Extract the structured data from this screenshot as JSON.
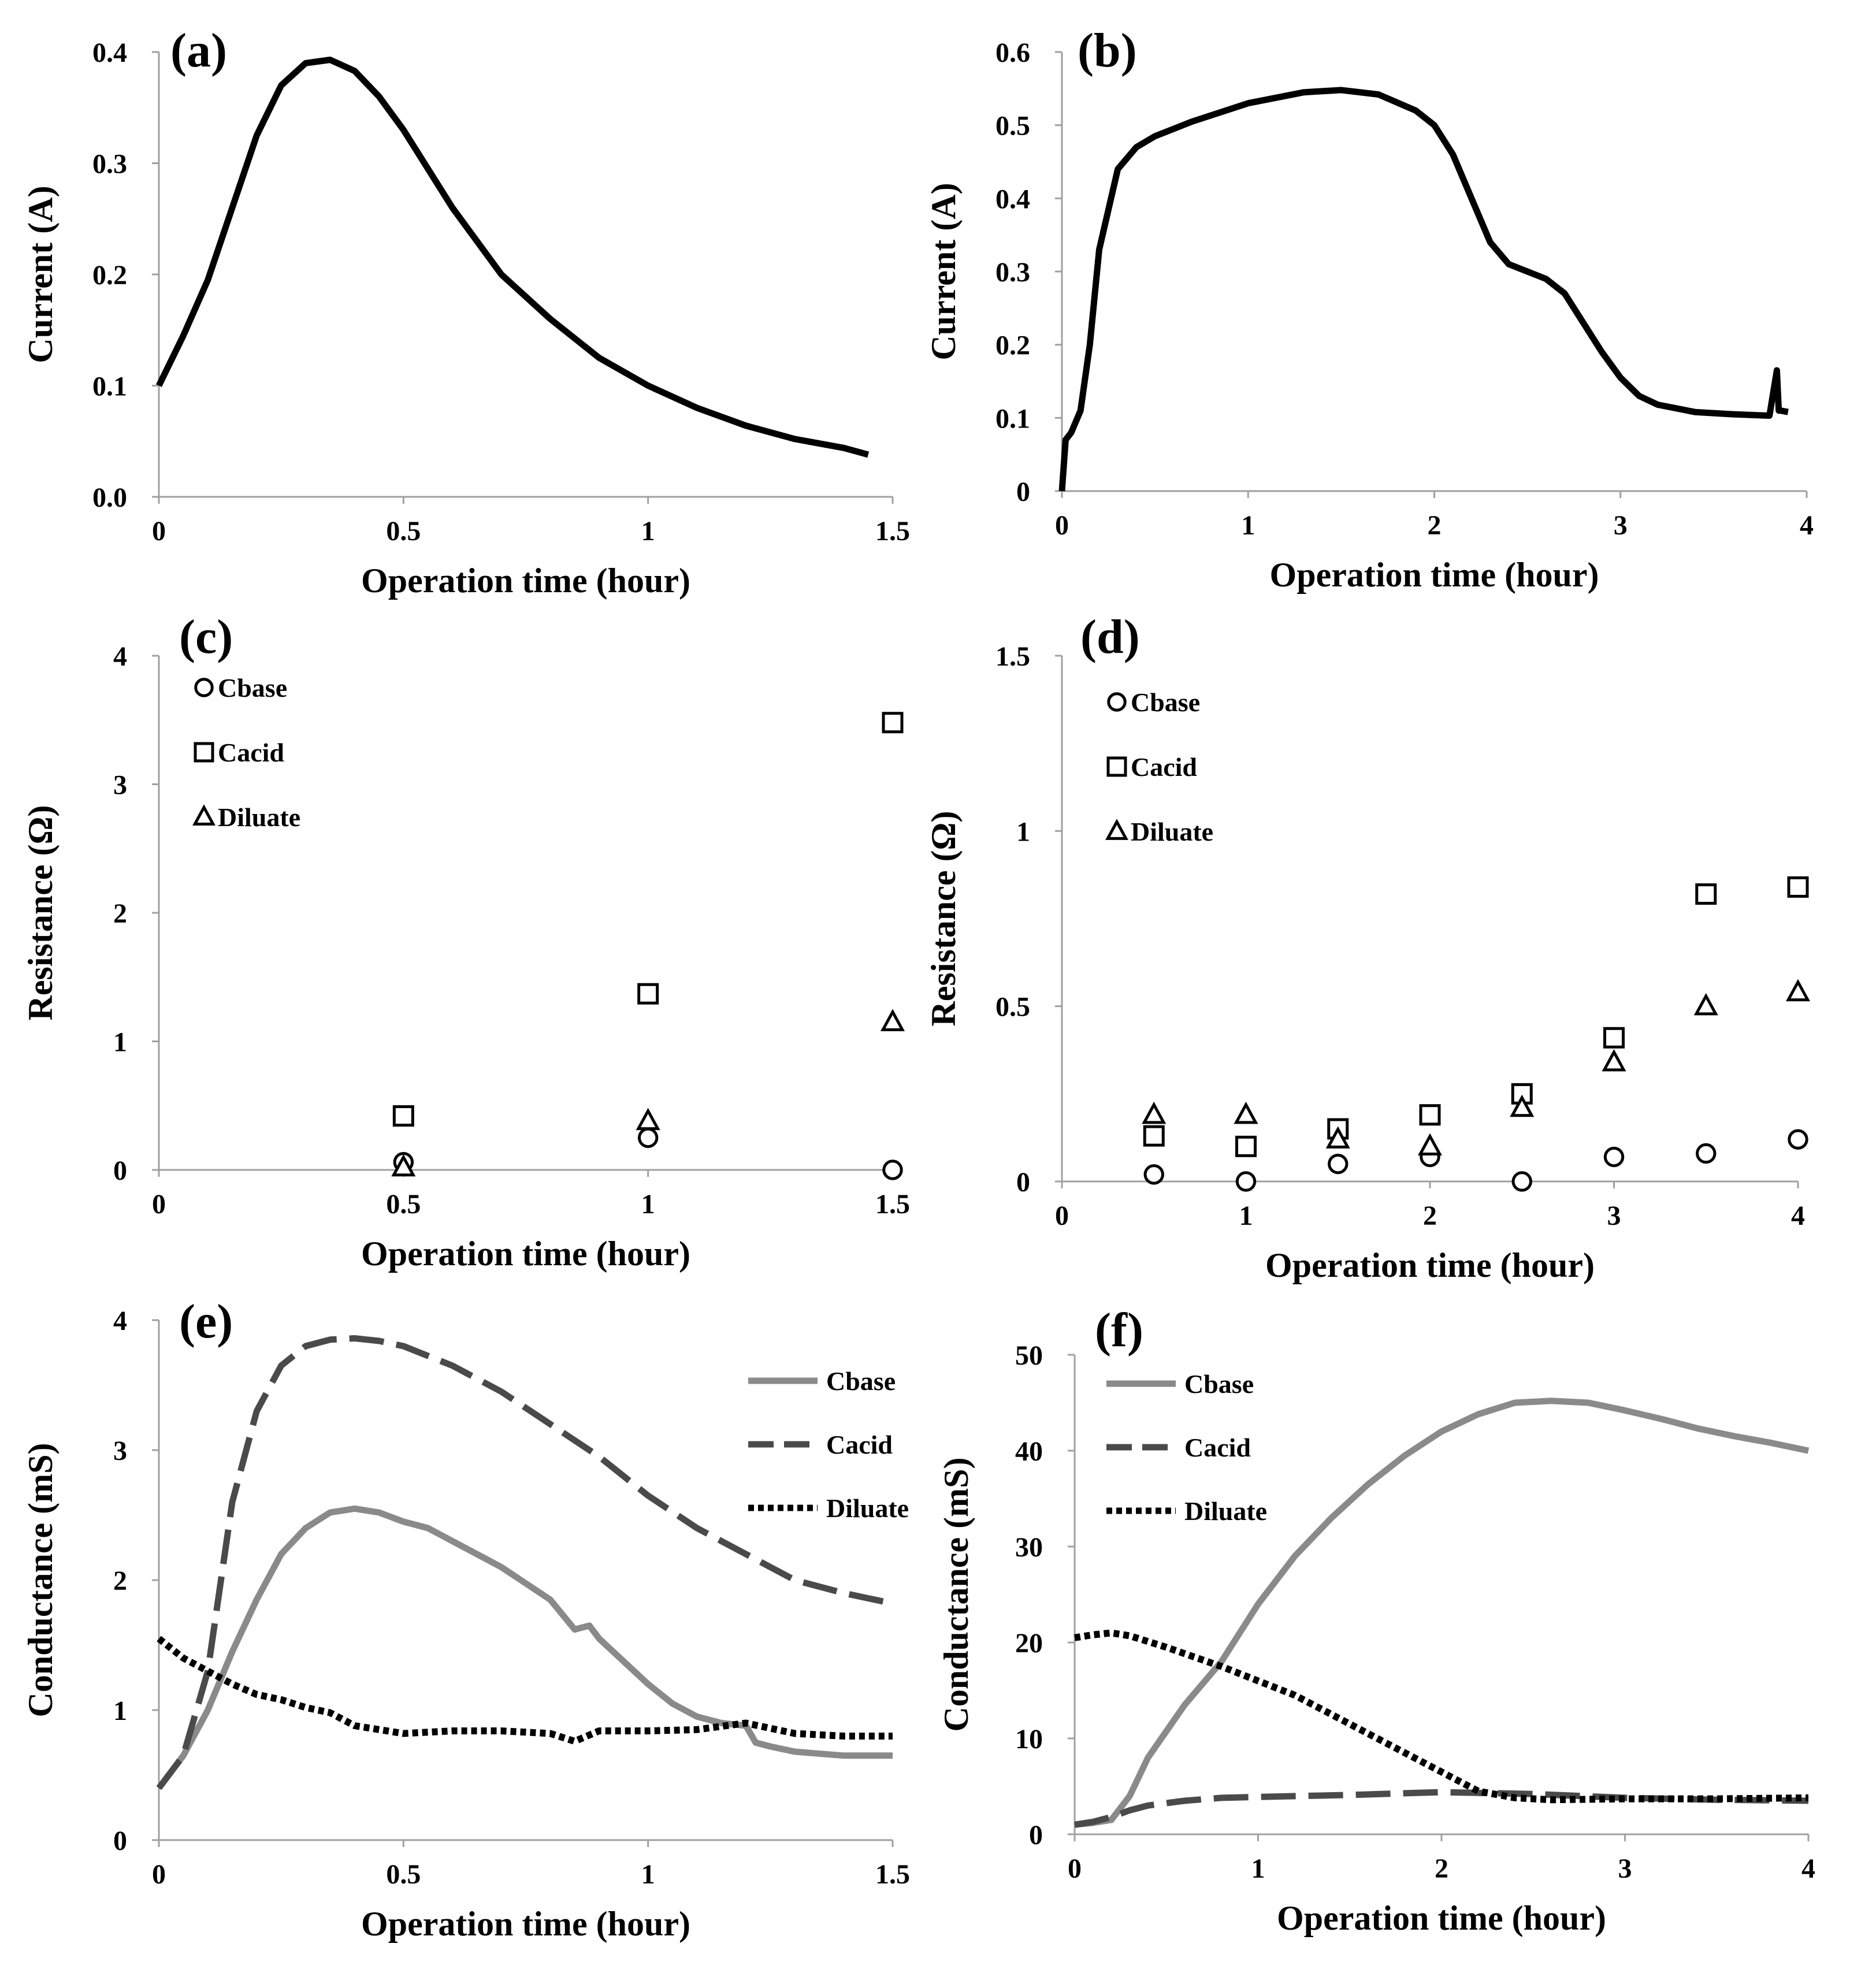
{
  "chart_data": [
    {
      "panel": "(a)",
      "type": "line",
      "xlabel": "Operation time (hour)",
      "ylabel": "Current (A)",
      "xlim": [
        0,
        1.5
      ],
      "ylim": [
        0,
        0.4
      ],
      "xticks": [
        "0",
        "0.5",
        "1",
        "1.5"
      ],
      "yticks": [
        "0.0",
        "0.1",
        "0.2",
        "0.3",
        "0.4"
      ],
      "series": [
        {
          "style": "solid",
          "color": "#000000",
          "x": [
            0,
            0.05,
            0.1,
            0.15,
            0.2,
            0.25,
            0.3,
            0.35,
            0.4,
            0.45,
            0.5,
            0.6,
            0.7,
            0.8,
            0.9,
            1.0,
            1.1,
            1.2,
            1.3,
            1.4,
            1.45
          ],
          "y": [
            0.1,
            0.145,
            0.195,
            0.26,
            0.325,
            0.37,
            0.39,
            0.393,
            0.383,
            0.36,
            0.33,
            0.26,
            0.2,
            0.16,
            0.125,
            0.1,
            0.08,
            0.064,
            0.052,
            0.044,
            0.038
          ]
        }
      ]
    },
    {
      "panel": "(b)",
      "type": "line",
      "xlabel": "Operation time (hour)",
      "ylabel": "Current (A)",
      "xlim": [
        0,
        4
      ],
      "ylim": [
        0,
        0.6
      ],
      "xticks": [
        "0",
        "1",
        "2",
        "3",
        "4"
      ],
      "yticks": [
        "0",
        "0.1",
        "0.2",
        "0.3",
        "0.4",
        "0.5",
        "0.6"
      ],
      "series": [
        {
          "style": "solid",
          "color": "#000000",
          "x": [
            0,
            0.02,
            0.05,
            0.1,
            0.15,
            0.2,
            0.3,
            0.4,
            0.5,
            0.7,
            1.0,
            1.3,
            1.5,
            1.7,
            1.9,
            2.0,
            2.1,
            2.2,
            2.3,
            2.4,
            2.5,
            2.6,
            2.7,
            2.8,
            2.9,
            3.0,
            3.1,
            3.2,
            3.4,
            3.6,
            3.8,
            3.84,
            3.85,
            3.86,
            3.9
          ],
          "y": [
            0.0,
            0.07,
            0.08,
            0.11,
            0.2,
            0.33,
            0.44,
            0.47,
            0.485,
            0.505,
            0.53,
            0.545,
            0.548,
            0.542,
            0.52,
            0.5,
            0.46,
            0.4,
            0.34,
            0.31,
            0.3,
            0.29,
            0.27,
            0.23,
            0.19,
            0.155,
            0.13,
            0.118,
            0.108,
            0.105,
            0.103,
            0.165,
            0.11,
            0.11,
            0.108
          ]
        }
      ]
    },
    {
      "panel": "(c)",
      "type": "scatter",
      "xlabel": "Operation time (hour)",
      "ylabel": "Resistance (Ω)",
      "xlim": [
        0,
        1.5
      ],
      "ylim": [
        0,
        4
      ],
      "xticks": [
        "0",
        "0.5",
        "1",
        "1.5"
      ],
      "yticks": [
        "0",
        "1",
        "2",
        "3",
        "4"
      ],
      "legend": "top-left",
      "series": [
        {
          "name": "Cbase",
          "marker": "circle",
          "x": [
            0.5,
            1.0,
            1.5
          ],
          "y": [
            0.06,
            0.25,
            0.0
          ]
        },
        {
          "name": "Cacid",
          "marker": "square",
          "x": [
            0.5,
            1.0,
            1.5
          ],
          "y": [
            0.42,
            1.37,
            3.48
          ]
        },
        {
          "name": "Diluate",
          "marker": "triangle",
          "x": [
            0.5,
            1.0,
            1.5
          ],
          "y": [
            0.02,
            0.38,
            1.15
          ]
        }
      ]
    },
    {
      "panel": "(d)",
      "type": "scatter",
      "xlabel": "Operation time (hour)",
      "ylabel": "Resistance (Ω)",
      "xlim": [
        0,
        4
      ],
      "ylim": [
        0,
        1.5
      ],
      "xticks": [
        "0",
        "1",
        "2",
        "3",
        "4"
      ],
      "yticks": [
        "0",
        "0.5",
        "1",
        "1.5"
      ],
      "legend": "top-left",
      "series": [
        {
          "name": "Cbase",
          "marker": "circle",
          "x": [
            0.5,
            1.0,
            1.5,
            2.0,
            2.5,
            3.0,
            3.5,
            4.0
          ],
          "y": [
            0.02,
            0.0,
            0.05,
            0.07,
            0.0,
            0.07,
            0.08,
            0.12
          ]
        },
        {
          "name": "Cacid",
          "marker": "square",
          "x": [
            0.5,
            1.0,
            1.5,
            2.0,
            2.5,
            3.0,
            3.5,
            4.0
          ],
          "y": [
            0.13,
            0.1,
            0.15,
            0.19,
            0.25,
            0.41,
            0.82,
            0.84
          ]
        },
        {
          "name": "Diluate",
          "marker": "triangle",
          "x": [
            0.5,
            1.0,
            1.5,
            2.0,
            2.5,
            3.0,
            3.5,
            4.0
          ],
          "y": [
            0.19,
            0.19,
            0.12,
            0.1,
            0.21,
            0.34,
            0.5,
            0.54
          ]
        }
      ]
    },
    {
      "panel": "(e)",
      "type": "line",
      "xlabel": "Operation time (hour)",
      "ylabel": "Conductance (mS)",
      "xlim": [
        0,
        1.5
      ],
      "ylim": [
        0,
        4
      ],
      "xticks": [
        "0",
        "0.5",
        "1",
        "1.5"
      ],
      "yticks": [
        "0",
        "1",
        "2",
        "3",
        "4"
      ],
      "legend": "top-right",
      "series": [
        {
          "name": "Cbase",
          "style": "solid",
          "color": "#8a8a8a",
          "x": [
            0,
            0.05,
            0.1,
            0.15,
            0.2,
            0.25,
            0.3,
            0.35,
            0.4,
            0.45,
            0.5,
            0.55,
            0.6,
            0.7,
            0.8,
            0.85,
            0.88,
            0.9,
            1.0,
            1.05,
            1.1,
            1.15,
            1.2,
            1.22,
            1.25,
            1.3,
            1.4,
            1.5
          ],
          "y": [
            0.4,
            0.65,
            1.0,
            1.45,
            1.85,
            2.2,
            2.4,
            2.52,
            2.55,
            2.52,
            2.45,
            2.4,
            2.3,
            2.1,
            1.85,
            1.62,
            1.65,
            1.55,
            1.2,
            1.05,
            0.95,
            0.9,
            0.88,
            0.75,
            0.72,
            0.68,
            0.65,
            0.65
          ]
        },
        {
          "name": "Cacid",
          "style": "dashed",
          "color": "#4a4a4a",
          "x": [
            0,
            0.05,
            0.1,
            0.15,
            0.2,
            0.25,
            0.3,
            0.35,
            0.4,
            0.45,
            0.5,
            0.6,
            0.7,
            0.8,
            0.9,
            1.0,
            1.1,
            1.2,
            1.3,
            1.4,
            1.5
          ],
          "y": [
            0.4,
            0.65,
            1.3,
            2.6,
            3.3,
            3.65,
            3.8,
            3.85,
            3.86,
            3.84,
            3.8,
            3.65,
            3.45,
            3.2,
            2.95,
            2.65,
            2.4,
            2.2,
            2.0,
            1.9,
            1.82
          ]
        },
        {
          "name": "Diluate",
          "style": "dotted",
          "color": "#000000",
          "x": [
            0,
            0.05,
            0.1,
            0.15,
            0.2,
            0.25,
            0.3,
            0.35,
            0.4,
            0.5,
            0.6,
            0.7,
            0.8,
            0.85,
            0.9,
            1.0,
            1.1,
            1.2,
            1.3,
            1.4,
            1.5
          ],
          "y": [
            1.55,
            1.4,
            1.3,
            1.2,
            1.12,
            1.08,
            1.02,
            0.98,
            0.88,
            0.82,
            0.84,
            0.84,
            0.82,
            0.76,
            0.84,
            0.84,
            0.85,
            0.9,
            0.82,
            0.8,
            0.8
          ]
        }
      ]
    },
    {
      "panel": "(f)",
      "type": "line",
      "xlabel": "Operation time (hour)",
      "ylabel": "Conductance (mS)",
      "xlim": [
        0,
        4
      ],
      "ylim": [
        0,
        50
      ],
      "xticks": [
        "0",
        "1",
        "2",
        "3",
        "4"
      ],
      "yticks": [
        "0",
        "10",
        "20",
        "30",
        "40",
        "50"
      ],
      "legend": "top-left",
      "series": [
        {
          "name": "Cbase",
          "style": "solid",
          "color": "#8a8a8a",
          "x": [
            0,
            0.1,
            0.2,
            0.3,
            0.4,
            0.6,
            0.8,
            1.0,
            1.2,
            1.4,
            1.6,
            1.8,
            2.0,
            2.2,
            2.4,
            2.6,
            2.8,
            3.0,
            3.2,
            3.4,
            3.6,
            3.8,
            4.0
          ],
          "y": [
            1.0,
            1.2,
            1.5,
            4.0,
            8.0,
            13.5,
            18.0,
            24.0,
            29.0,
            33.0,
            36.5,
            39.5,
            42.0,
            43.8,
            45.0,
            45.2,
            45.0,
            44.2,
            43.3,
            42.3,
            41.5,
            40.8,
            40.0
          ]
        },
        {
          "name": "Cacid",
          "style": "dashed",
          "color": "#4a4a4a",
          "x": [
            0,
            0.1,
            0.2,
            0.3,
            0.4,
            0.6,
            0.8,
            1.0,
            1.5,
            2.0,
            2.5,
            3.0,
            3.5,
            4.0
          ],
          "y": [
            1.0,
            1.3,
            1.8,
            2.5,
            3.0,
            3.5,
            3.8,
            3.9,
            4.1,
            4.4,
            4.2,
            3.8,
            3.6,
            3.5
          ]
        },
        {
          "name": "Diluate",
          "style": "dotted",
          "color": "#000000",
          "x": [
            0,
            0.1,
            0.2,
            0.3,
            0.5,
            0.8,
            1.0,
            1.2,
            1.4,
            1.6,
            1.8,
            2.0,
            2.2,
            2.4,
            2.6,
            3.0,
            3.5,
            4.0
          ],
          "y": [
            20.5,
            20.8,
            21.0,
            20.7,
            19.5,
            17.5,
            16.0,
            14.5,
            12.5,
            10.5,
            8.5,
            6.5,
            4.5,
            3.8,
            3.6,
            3.7,
            3.7,
            3.8
          ]
        }
      ]
    }
  ]
}
